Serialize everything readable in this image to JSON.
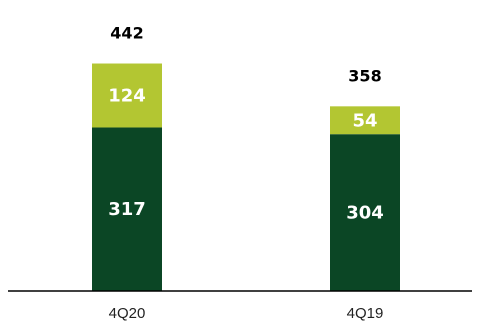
{
  "chart_data": {
    "type": "bar",
    "stacked": true,
    "title": "",
    "xlabel": "",
    "ylabel": "",
    "categories": [
      "4Q20",
      "4Q19"
    ],
    "series": [
      {
        "values": [
          317,
          304
        ],
        "color": "#0b4625"
      },
      {
        "values": [
          124,
          54
        ],
        "color": "#b3c632"
      }
    ],
    "totals": [
      442,
      358
    ],
    "ylim": [
      0,
      442
    ],
    "grid": false,
    "legend": "none"
  }
}
